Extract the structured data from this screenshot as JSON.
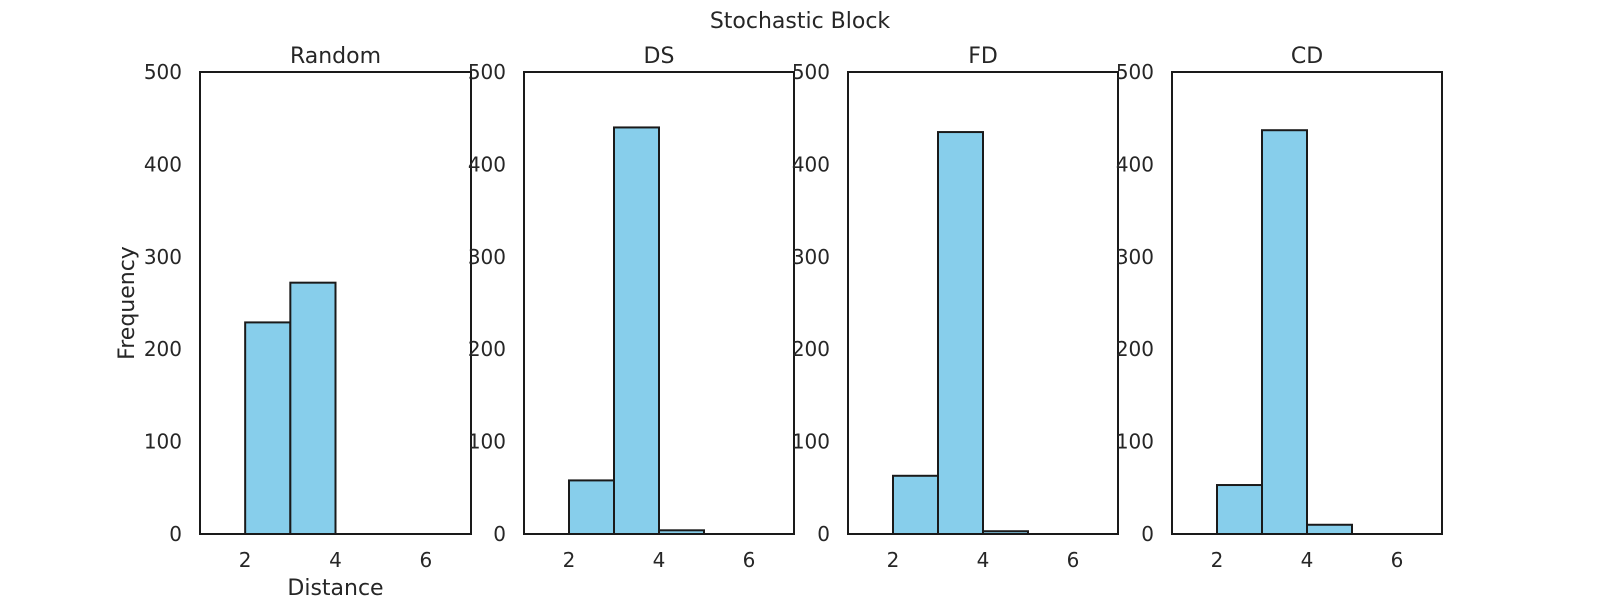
{
  "figure": {
    "suptitle": "Stochastic Block"
  },
  "chart_data": [
    {
      "type": "bar",
      "title": "Random",
      "xlabel": "Distance",
      "ylabel": "Frequency",
      "xlim": [
        1,
        7
      ],
      "ylim": [
        0,
        500
      ],
      "xticks": [
        2,
        4,
        6
      ],
      "yticks": [
        0,
        100,
        200,
        300,
        400,
        500
      ],
      "bins": [
        [
          2,
          3
        ],
        [
          3,
          4
        ]
      ],
      "values": [
        229,
        272
      ],
      "color": "#87ceeb",
      "grid": false
    },
    {
      "type": "bar",
      "title": "DS",
      "xlabel": "",
      "ylabel": "",
      "xlim": [
        1,
        7
      ],
      "ylim": [
        0,
        500
      ],
      "xticks": [
        2,
        4,
        6
      ],
      "yticks": [
        0,
        100,
        200,
        300,
        400,
        500
      ],
      "bins": [
        [
          2,
          3
        ],
        [
          3,
          4
        ],
        [
          4,
          5
        ]
      ],
      "values": [
        58,
        440,
        4
      ],
      "color": "#87ceeb",
      "grid": false
    },
    {
      "type": "bar",
      "title": "FD",
      "xlabel": "",
      "ylabel": "",
      "xlim": [
        1,
        7
      ],
      "ylim": [
        0,
        500
      ],
      "xticks": [
        2,
        4,
        6
      ],
      "yticks": [
        0,
        100,
        200,
        300,
        400,
        500
      ],
      "bins": [
        [
          2,
          3
        ],
        [
          3,
          4
        ],
        [
          4,
          5
        ]
      ],
      "values": [
        63,
        435,
        3
      ],
      "color": "#87ceeb",
      "grid": false
    },
    {
      "type": "bar",
      "title": "CD",
      "xlabel": "",
      "ylabel": "",
      "xlim": [
        1,
        7
      ],
      "ylim": [
        0,
        500
      ],
      "xticks": [
        2,
        4,
        6
      ],
      "yticks": [
        0,
        100,
        200,
        300,
        400,
        500
      ],
      "bins": [
        [
          2,
          3
        ],
        [
          3,
          4
        ],
        [
          4,
          5
        ]
      ],
      "values": [
        53,
        437,
        10
      ],
      "color": "#87ceeb",
      "grid": false
    }
  ]
}
